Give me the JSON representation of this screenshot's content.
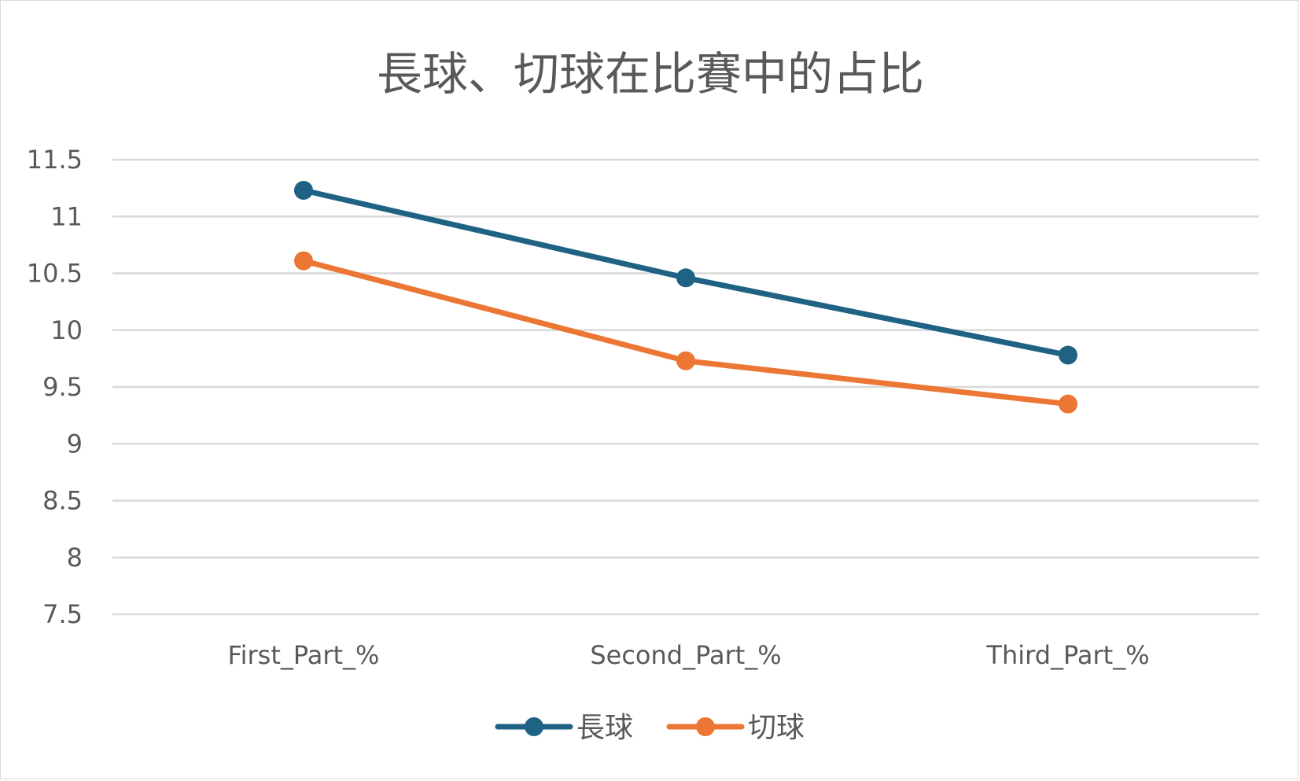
{
  "chart_data": {
    "type": "line",
    "title": "長球、切球在比賽中的占比",
    "categories": [
      "First_Part_%",
      "Second_Part_%",
      "Third_Part_%"
    ],
    "series": [
      {
        "name": "長球",
        "values": [
          11.23,
          10.46,
          9.78
        ],
        "color": "#1f6284"
      },
      {
        "name": "切球",
        "values": [
          10.61,
          9.73,
          9.35
        ],
        "color": "#ec7634"
      }
    ],
    "ylim": [
      7.5,
      11.5
    ],
    "yticks": [
      "11.5",
      "11",
      "10.5",
      "10",
      "9.5",
      "9",
      "8.5",
      "8",
      "7.5"
    ],
    "grid": true,
    "gridline_color": "#d9d9d9",
    "legend_position": "bottom"
  }
}
